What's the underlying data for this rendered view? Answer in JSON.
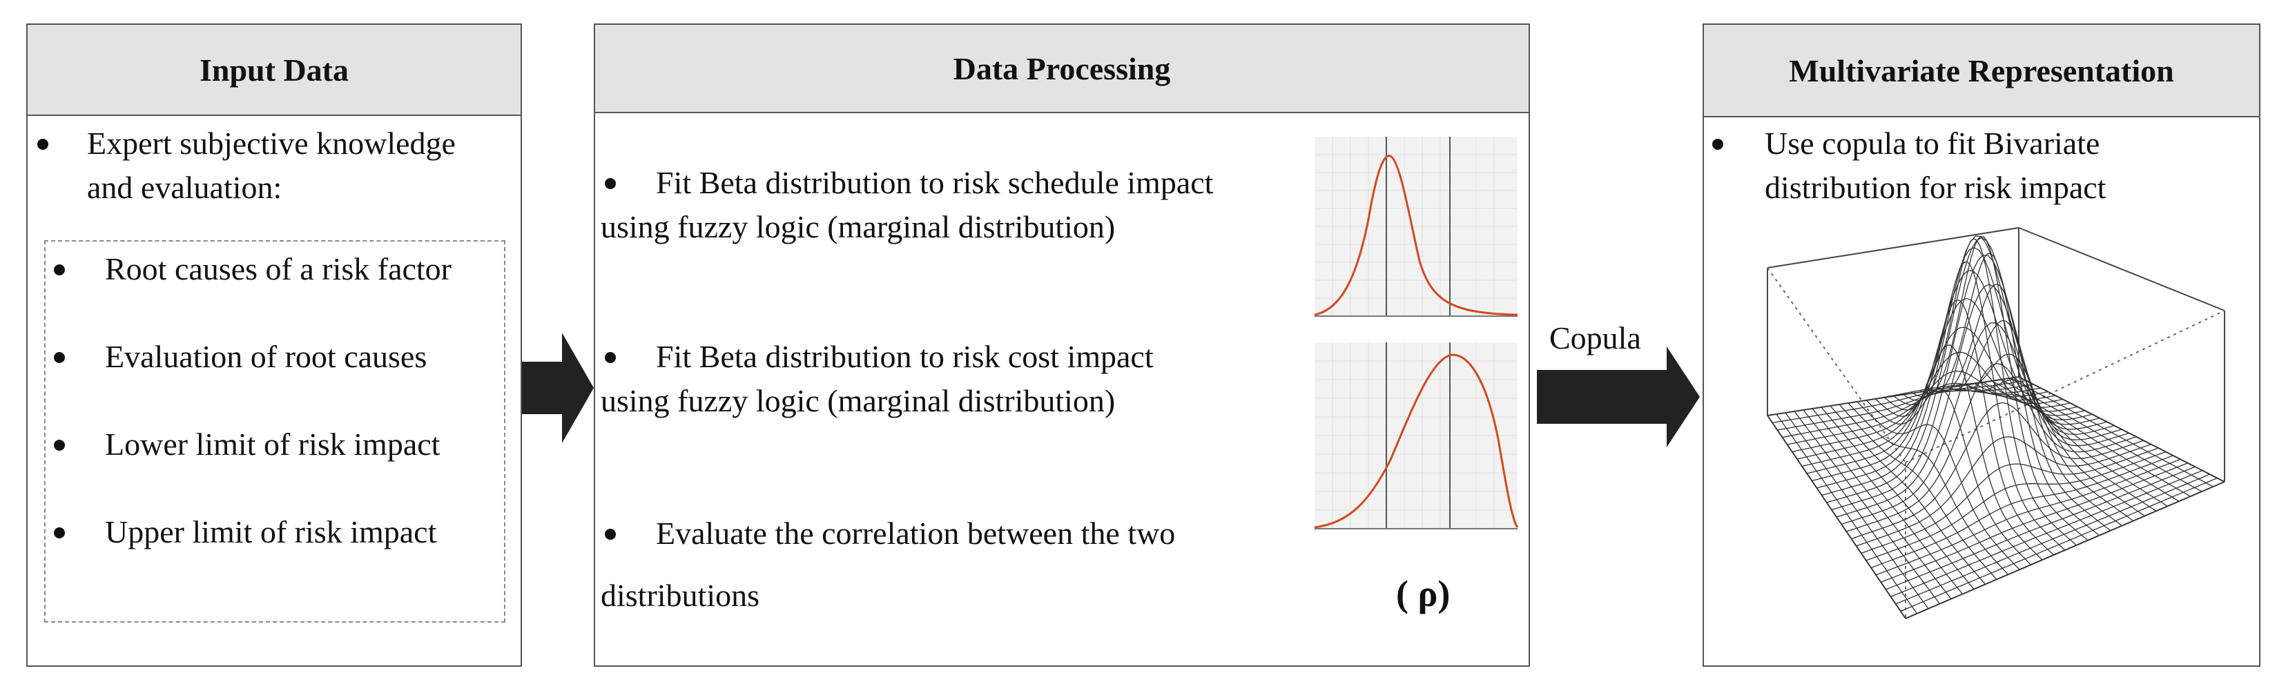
{
  "input": {
    "title": "Input Data",
    "intro_line1": "Expert subjective knowledge",
    "intro_line2": "and evaluation:",
    "items": [
      "Root causes of a risk factor",
      "Evaluation of root causes",
      "Lower limit of risk impact",
      "Upper limit of risk impact"
    ]
  },
  "processing": {
    "title": "Data Processing",
    "step1_line1": "Fit Beta distribution to risk schedule impact",
    "step1_line2": "using fuzzy logic (marginal distribution)",
    "step2_line1": "Fit Beta distribution to risk cost impact",
    "step2_line2": "using fuzzy logic (marginal distribution)",
    "step3_line1": "Evaluate the correlation between the two",
    "step3_line2": "distributions",
    "rho_symbol": "( ρ)"
  },
  "connector": {
    "label": "Copula"
  },
  "output": {
    "title": "Multivariate Representation",
    "line1": "Use copula to fit Bivariate",
    "line2": "distribution for risk impact"
  },
  "colors": {
    "curve": "#d24a1e",
    "header_bg": "#e3e3e3",
    "arrow": "#222222"
  }
}
